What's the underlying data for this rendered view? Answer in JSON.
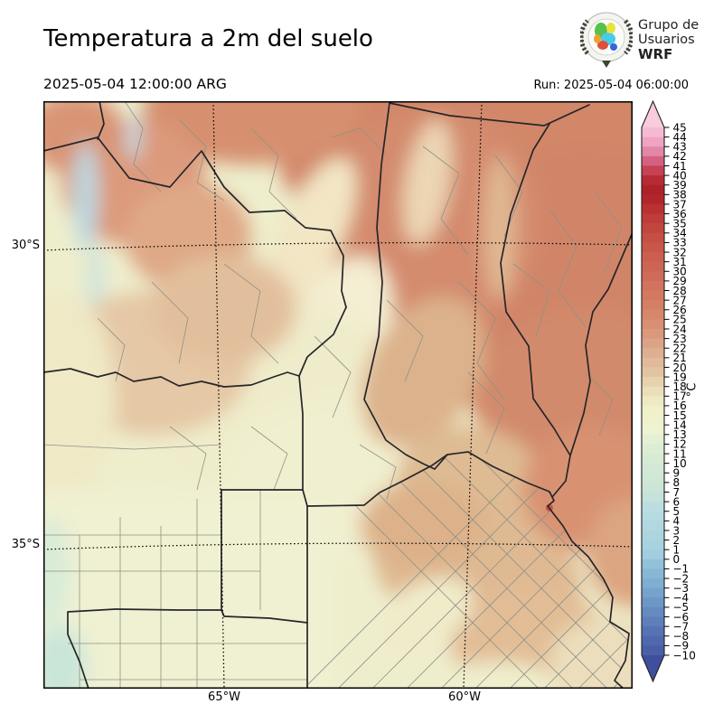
{
  "header": {
    "title": "Temperatura a 2m del suelo",
    "valid_time": "2025-05-04 12:00:00 ARG",
    "run_label": "Run: 2025-05-04 06:00:00",
    "logo": {
      "line1": "Grupo de",
      "line2": "Usuarios",
      "line3": "WRF"
    }
  },
  "map": {
    "lat_labels": [
      "30°S",
      "35°S"
    ],
    "lon_labels": [
      "65°W",
      "60°W"
    ]
  },
  "colorbar": {
    "unit": "°C",
    "ticks": [
      45,
      44,
      43,
      42,
      41,
      40,
      39,
      38,
      37,
      36,
      35,
      34,
      33,
      32,
      31,
      30,
      29,
      28,
      27,
      26,
      25,
      24,
      23,
      22,
      21,
      20,
      19,
      18,
      17,
      16,
      15,
      14,
      13,
      12,
      11,
      10,
      9,
      8,
      7,
      6,
      5,
      4,
      3,
      2,
      1,
      0,
      -1,
      -2,
      -3,
      -4,
      -5,
      -6,
      -7,
      -8,
      -9,
      -10
    ],
    "arrow_top_color": "#f8cbdd",
    "arrow_bottom_color": "#3e509d",
    "bin_colors_top_to_bottom": [
      "#f5bad3",
      "#f0a3c3",
      "#e287a6",
      "#d4617f",
      "#c64153",
      "#b62b35",
      "#ae2128",
      "#b2262b",
      "#b93231",
      "#be3d38",
      "#c2463e",
      "#c54f44",
      "#c8574a",
      "#cb5e50",
      "#cd6555",
      "#cf6c59",
      "#d1735e",
      "#d37962",
      "#d48066",
      "#d6876c",
      "#d88f74",
      "#da997c",
      "#dca486",
      "#deaf90",
      "#e0ba9a",
      "#e2c4a2",
      "#e6d2ac",
      "#eadfb8",
      "#eeeac4",
      "#f0f0cb",
      "#f0f2ce",
      "#eef3d1",
      "#e4f0d4",
      "#dcedd4",
      "#d7ebd4",
      "#d3e9d5",
      "#cfe7d5",
      "#cce5d7",
      "#c5e2db",
      "#bcdee1",
      "#b6dbe1",
      "#b1d8e1",
      "#acd5e0",
      "#a7d2df",
      "#a0cddf",
      "#92c1da",
      "#88b7d6",
      "#7eaed1",
      "#75a3cc",
      "#6d97c6",
      "#658bc0",
      "#5e7fba",
      "#5673b4",
      "#5069ae",
      "#4a5fa7"
    ]
  }
}
